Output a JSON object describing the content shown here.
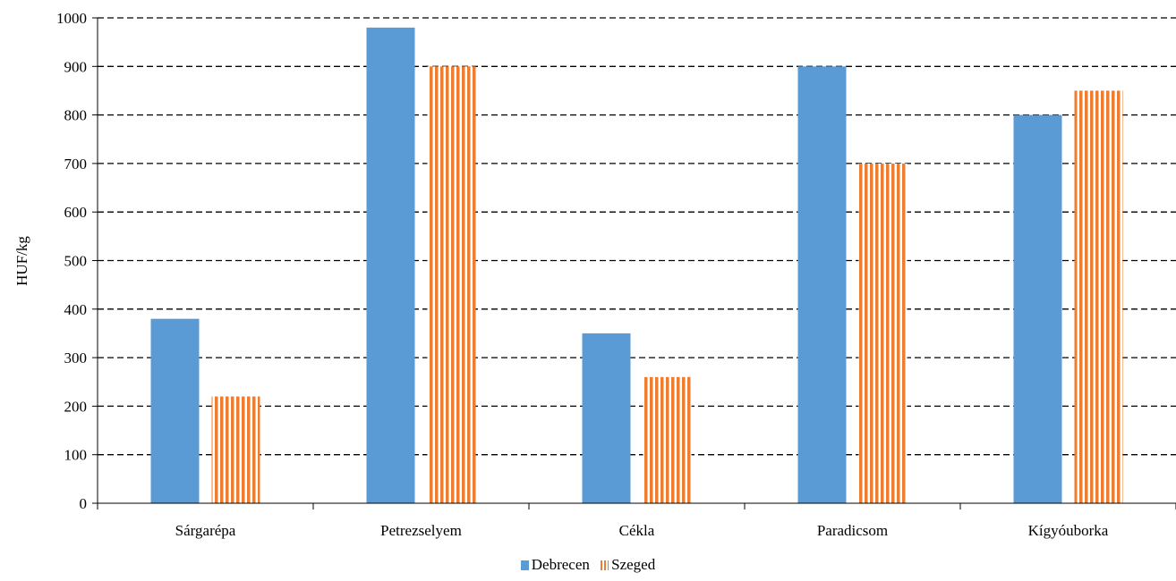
{
  "chart_data": {
    "type": "bar",
    "categories": [
      "Sárgarépa",
      "Petrezselyem",
      "Cékla",
      "Paradicsom",
      "Kígyóuborka"
    ],
    "series": [
      {
        "name": "Debrecen",
        "values": [
          380,
          980,
          350,
          900,
          800
        ],
        "color": "#5b9bd5",
        "pattern": "solid"
      },
      {
        "name": "Szeged",
        "values": [
          220,
          900,
          260,
          700,
          850
        ],
        "color": "#ed7d31",
        "pattern": "vertical-stripes"
      }
    ],
    "ylabel": "HUF/kg",
    "xlabel": "",
    "ylim": [
      0,
      1000
    ],
    "yticks": [
      0,
      100,
      200,
      300,
      400,
      500,
      600,
      700,
      800,
      900,
      1000
    ],
    "grid": "dashed-horizontal",
    "legend_position": "bottom"
  }
}
